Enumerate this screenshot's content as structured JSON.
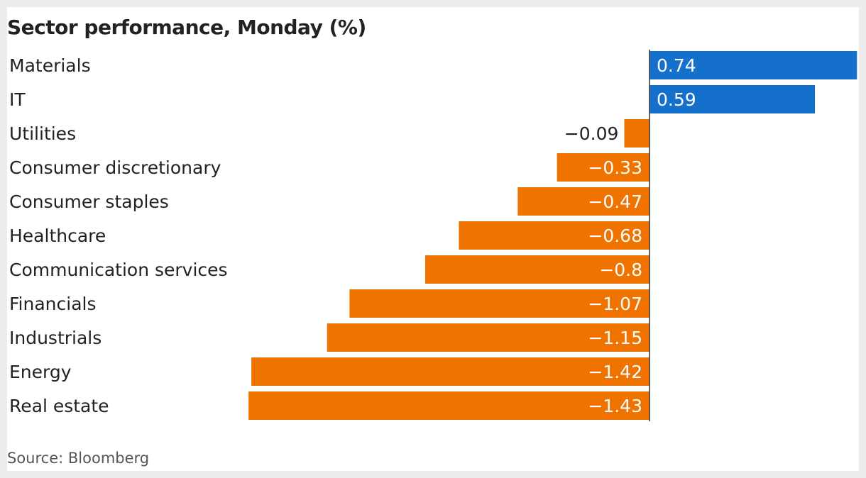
{
  "title": "Sector performance, Monday (%)",
  "source": "Source: Bloomberg",
  "colors": {
    "positive": "#1570cc",
    "negative": "#f07300",
    "axis": "#333333",
    "outer_background": "#ececec",
    "panel_background": "#ffffff"
  },
  "chart_data": {
    "type": "bar",
    "orientation": "horizontal",
    "title": "Sector performance, Monday (%)",
    "categories": [
      "Materials",
      "IT",
      "Utilities",
      "Consumer discretionary",
      "Consumer staples",
      "Healthcare",
      "Communication services",
      "Financials",
      "Industrials",
      "Energy",
      "Real estate"
    ],
    "values": [
      0.74,
      0.59,
      -0.09,
      -0.33,
      -0.47,
      -0.68,
      -0.8,
      -1.07,
      -1.15,
      -1.42,
      -1.43
    ],
    "value_labels": [
      "0.74",
      "0.59",
      "−0.09",
      "−0.33",
      "−0.47",
      "−0.68",
      "−0.8",
      "−1.07",
      "−1.15",
      "−1.42",
      "−1.43"
    ],
    "xlim": [
      -1.43,
      0.74
    ],
    "grid": false,
    "legend": "none"
  }
}
